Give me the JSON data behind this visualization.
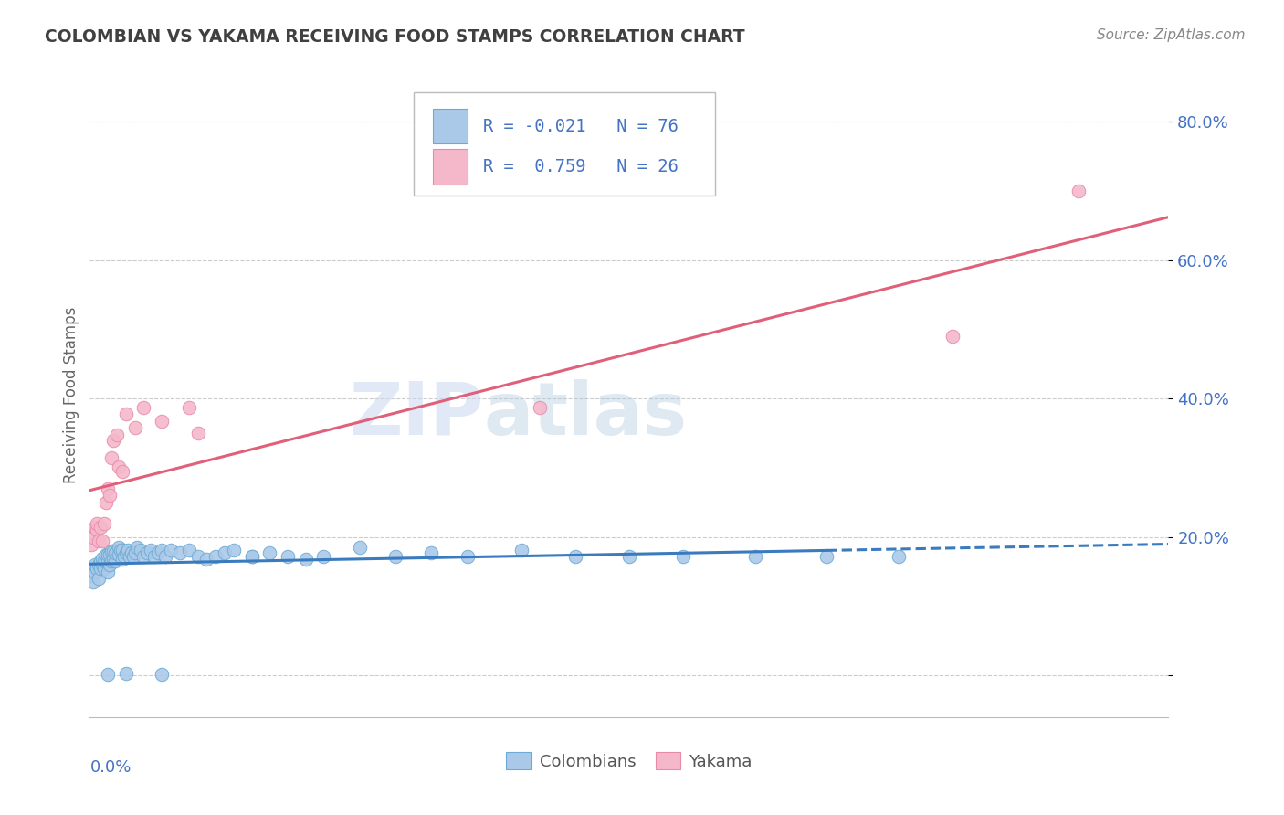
{
  "title": "COLOMBIAN VS YAKAMA RECEIVING FOOD STAMPS CORRELATION CHART",
  "source": "Source: ZipAtlas.com",
  "ylabel": "Receiving Food Stamps",
  "watermark_zip": "ZIP",
  "watermark_atlas": "atlas",
  "colombian_R": -0.021,
  "colombian_N": 76,
  "yakama_R": 0.759,
  "yakama_N": 26,
  "colombian_color": "#aac9e8",
  "colombian_edge_color": "#6aaad4",
  "colombian_line_color": "#3a7bbf",
  "yakama_color": "#f5b8cb",
  "yakama_edge_color": "#e88aaa",
  "yakama_line_color": "#e0607a",
  "background_color": "#ffffff",
  "grid_color": "#cccccc",
  "title_color": "#404040",
  "axis_label_color": "#4472c4",
  "source_color": "#888888",
  "xlim": [
    0.0,
    0.6
  ],
  "ylim": [
    -0.06,
    0.87
  ],
  "yticks": [
    0.0,
    0.2,
    0.4,
    0.6,
    0.8
  ],
  "colombian_x": [
    0.001,
    0.002,
    0.003,
    0.003,
    0.004,
    0.005,
    0.005,
    0.006,
    0.006,
    0.007,
    0.007,
    0.008,
    0.008,
    0.009,
    0.009,
    0.01,
    0.01,
    0.01,
    0.011,
    0.011,
    0.012,
    0.012,
    0.013,
    0.013,
    0.014,
    0.014,
    0.015,
    0.016,
    0.016,
    0.017,
    0.018,
    0.018,
    0.019,
    0.02,
    0.021,
    0.022,
    0.023,
    0.024,
    0.025,
    0.026,
    0.028,
    0.03,
    0.032,
    0.034,
    0.036,
    0.038,
    0.04,
    0.042,
    0.045,
    0.05,
    0.055,
    0.06,
    0.065,
    0.07,
    0.075,
    0.08,
    0.09,
    0.1,
    0.11,
    0.12,
    0.13,
    0.15,
    0.17,
    0.19,
    0.21,
    0.24,
    0.27,
    0.3,
    0.33,
    0.37,
    0.41,
    0.45,
    0.01,
    0.02,
    0.04,
    0.09
  ],
  "colombian_y": [
    0.145,
    0.135,
    0.15,
    0.16,
    0.155,
    0.14,
    0.16,
    0.165,
    0.155,
    0.16,
    0.17,
    0.155,
    0.165,
    0.165,
    0.175,
    0.15,
    0.165,
    0.175,
    0.16,
    0.175,
    0.165,
    0.18,
    0.17,
    0.18,
    0.165,
    0.178,
    0.18,
    0.175,
    0.185,
    0.182,
    0.168,
    0.182,
    0.172,
    0.178,
    0.182,
    0.172,
    0.178,
    0.172,
    0.178,
    0.186,
    0.182,
    0.172,
    0.178,
    0.182,
    0.172,
    0.178,
    0.182,
    0.172,
    0.182,
    0.178,
    0.182,
    0.172,
    0.168,
    0.172,
    0.178,
    0.182,
    0.172,
    0.178,
    0.172,
    0.168,
    0.172,
    0.186,
    0.172,
    0.178,
    0.172,
    0.182,
    0.172,
    0.172,
    0.172,
    0.172,
    0.172,
    0.172,
    0.002,
    0.003,
    0.002,
    0.172
  ],
  "yakama_x": [
    0.001,
    0.002,
    0.003,
    0.004,
    0.004,
    0.005,
    0.006,
    0.007,
    0.008,
    0.009,
    0.01,
    0.011,
    0.012,
    0.013,
    0.015,
    0.016,
    0.018,
    0.02,
    0.025,
    0.03,
    0.04,
    0.055,
    0.06,
    0.25,
    0.48,
    0.55
  ],
  "yakama_y": [
    0.19,
    0.2,
    0.215,
    0.21,
    0.22,
    0.195,
    0.215,
    0.195,
    0.22,
    0.25,
    0.27,
    0.26,
    0.315,
    0.34,
    0.348,
    0.302,
    0.295,
    0.378,
    0.358,
    0.388,
    0.368,
    0.388,
    0.35,
    0.388,
    0.49,
    0.7
  ],
  "legend_box_color": "#f0f0f0",
  "legend_box_edge": "#cccccc"
}
